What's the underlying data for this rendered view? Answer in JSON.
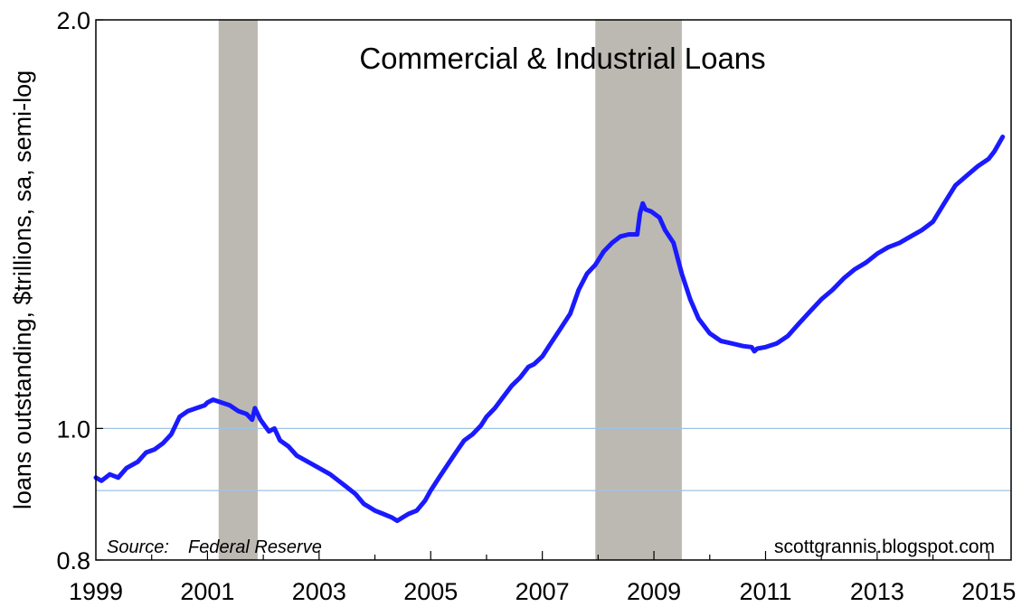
{
  "chart_data": {
    "type": "line",
    "title": "Commercial & Industrial Loans",
    "ylabel": "loans outstanding, $trillions, sa, semi-log",
    "xlabel": "",
    "source_label": "Source:",
    "source_text": "Federal Reserve",
    "credit": "scottgrannis.blogspot.com",
    "y_scale": "log",
    "xlim": [
      1999.0,
      2015.4
    ],
    "ylim": [
      0.8,
      2.0
    ],
    "x_ticks": [
      1999,
      2001,
      2003,
      2005,
      2007,
      2009,
      2011,
      2013,
      2015
    ],
    "x_tick_labels": [
      "1999",
      "2001",
      "2003",
      "2005",
      "2007",
      "2009",
      "2011",
      "2013",
      "2015"
    ],
    "y_ticks": [
      0.8,
      1.0,
      2.0
    ],
    "y_tick_labels": [
      "0.8",
      "1.0",
      "2.0"
    ],
    "gridlines": [
      1.0,
      0.9
    ],
    "grid": true,
    "recessions": [
      {
        "start": 2001.2,
        "end": 2001.9
      },
      {
        "start": 2007.95,
        "end": 2009.5
      }
    ],
    "colors": {
      "line": "#1a1aff",
      "recession": "#bcb9b2",
      "gridline": "#9ec3e6"
    },
    "series": [
      {
        "x": [
          1999.0,
          1999.1,
          1999.25,
          1999.4,
          1999.55,
          1999.75,
          1999.9,
          2000.05,
          2000.2,
          2000.35,
          2000.5,
          2000.65,
          2000.8,
          2000.95,
          2001.0,
          2001.1,
          2001.25,
          2001.4,
          2001.55,
          2001.7,
          2001.8,
          2001.85,
          2001.95,
          2002.1,
          2002.2,
          2002.3,
          2002.45,
          2002.6,
          2002.8,
          2003.0,
          2003.2,
          2003.35,
          2003.5,
          2003.65,
          2003.8,
          2003.9,
          2004.0,
          2004.15,
          2004.3,
          2004.4,
          2004.5,
          2004.6,
          2004.75,
          2004.9,
          2005.0,
          2005.15,
          2005.3,
          2005.45,
          2005.6,
          2005.75,
          2005.9,
          2006.0,
          2006.15,
          2006.3,
          2006.45,
          2006.6,
          2006.75,
          2006.85,
          2007.0,
          2007.15,
          2007.3,
          2007.5,
          2007.65,
          2007.8,
          2007.95,
          2008.1,
          2008.25,
          2008.4,
          2008.55,
          2008.6,
          2008.7,
          2008.75,
          2008.8,
          2008.85,
          2008.95,
          2009.1,
          2009.2,
          2009.35,
          2009.5,
          2009.65,
          2009.8,
          2010.0,
          2010.2,
          2010.4,
          2010.6,
          2010.75,
          2010.8,
          2010.85,
          2011.0,
          2011.2,
          2011.4,
          2011.6,
          2011.8,
          2012.0,
          2012.2,
          2012.4,
          2012.6,
          2012.8,
          2013.0,
          2013.2,
          2013.4,
          2013.6,
          2013.8,
          2014.0,
          2014.2,
          2014.4,
          2014.6,
          2014.8,
          2015.0,
          2015.1,
          2015.25
        ],
        "y": [
          0.92,
          0.915,
          0.925,
          0.92,
          0.935,
          0.945,
          0.96,
          0.965,
          0.975,
          0.99,
          1.02,
          1.03,
          1.035,
          1.04,
          1.045,
          1.05,
          1.045,
          1.04,
          1.03,
          1.025,
          1.015,
          1.035,
          1.015,
          0.995,
          1.0,
          0.98,
          0.97,
          0.955,
          0.945,
          0.935,
          0.925,
          0.915,
          0.905,
          0.895,
          0.88,
          0.875,
          0.87,
          0.865,
          0.86,
          0.855,
          0.86,
          0.865,
          0.87,
          0.885,
          0.9,
          0.92,
          0.94,
          0.96,
          0.98,
          0.99,
          1.005,
          1.02,
          1.035,
          1.055,
          1.075,
          1.09,
          1.11,
          1.115,
          1.13,
          1.155,
          1.18,
          1.215,
          1.265,
          1.3,
          1.32,
          1.35,
          1.37,
          1.385,
          1.39,
          1.39,
          1.39,
          1.44,
          1.465,
          1.45,
          1.445,
          1.43,
          1.4,
          1.37,
          1.3,
          1.245,
          1.205,
          1.175,
          1.16,
          1.155,
          1.15,
          1.148,
          1.14,
          1.145,
          1.148,
          1.155,
          1.17,
          1.195,
          1.22,
          1.245,
          1.265,
          1.29,
          1.31,
          1.325,
          1.345,
          1.36,
          1.37,
          1.385,
          1.4,
          1.42,
          1.465,
          1.51,
          1.535,
          1.56,
          1.58,
          1.6,
          1.64
        ]
      }
    ]
  }
}
